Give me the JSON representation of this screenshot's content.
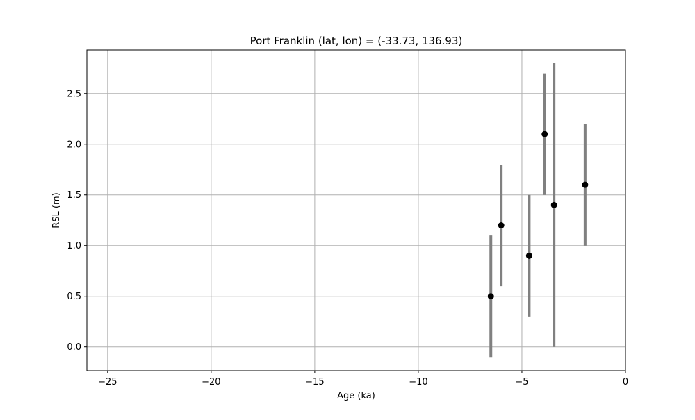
{
  "chart_data": {
    "type": "scatter",
    "title": "Port Franklin (lat, lon) = (-33.73, 136.93)",
    "xlabel": "Age (ka)",
    "ylabel": "RSL (m)",
    "xlim": [
      -26,
      0
    ],
    "ylim": [
      -0.235,
      2.93
    ],
    "xticks": [
      -25,
      -20,
      -15,
      -10,
      -5,
      0
    ],
    "xtick_labels": [
      "−25",
      "−20",
      "−15",
      "−10",
      "−5",
      "0"
    ],
    "yticks": [
      0.0,
      0.5,
      1.0,
      1.5,
      2.0,
      2.5
    ],
    "ytick_labels": [
      "0.0",
      "0.5",
      "1.0",
      "1.5",
      "2.0",
      "2.5"
    ],
    "grid": true,
    "points": [
      {
        "x": -6.5,
        "y": 0.5,
        "y_low": -0.1,
        "y_high": 1.1
      },
      {
        "x": -6.0,
        "y": 1.2,
        "y_low": 0.6,
        "y_high": 1.8
      },
      {
        "x": -4.65,
        "y": 0.9,
        "y_low": 0.3,
        "y_high": 1.5
      },
      {
        "x": -3.9,
        "y": 2.1,
        "y_low": 1.5,
        "y_high": 2.7
      },
      {
        "x": -3.45,
        "y": 1.4,
        "y_low": 0.0,
        "y_high": 2.8
      },
      {
        "x": -1.95,
        "y": 1.6,
        "y_low": 1.0,
        "y_high": 2.2
      }
    ],
    "colors": {
      "marker": "#000000",
      "errorbar": "#808080",
      "grid": "#b0b0b0",
      "axes": "#000000"
    }
  }
}
